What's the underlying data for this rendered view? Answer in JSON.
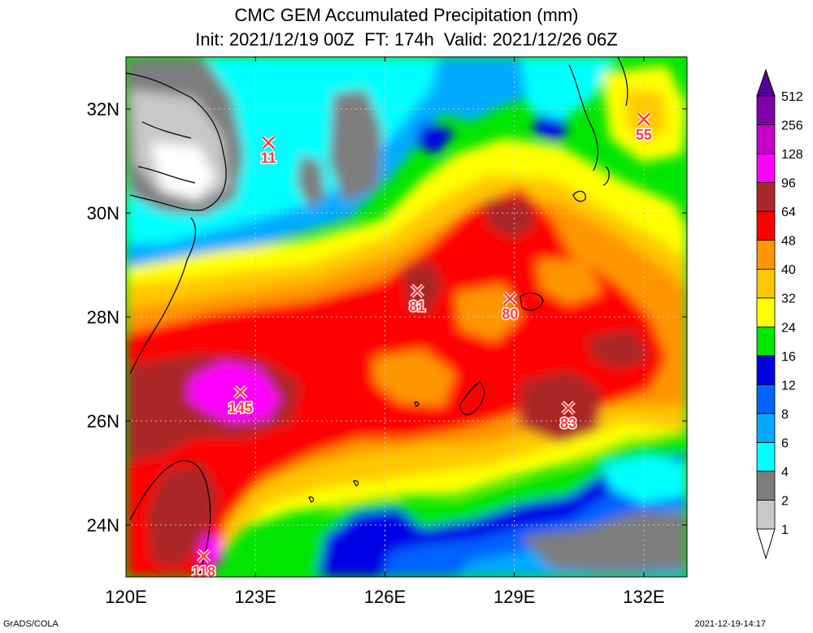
{
  "title": "CMC GEM Accumulated Precipitation (mm)",
  "subtitle": "Init: 2021/12/19 00Z  FT: 174h  Valid: 2021/12/26 06Z",
  "credit_left": "GrADS/COLA",
  "credit_right": "2021-12-19-14:17",
  "map": {
    "lon_range": [
      120,
      133
    ],
    "lat_range": [
      23,
      33
    ],
    "lon_ticks": [
      {
        "value": 120,
        "label": "120E"
      },
      {
        "value": 123,
        "label": "123E"
      },
      {
        "value": 126,
        "label": "126E"
      },
      {
        "value": 129,
        "label": "129E"
      },
      {
        "value": 132,
        "label": "132E"
      }
    ],
    "lat_ticks": [
      {
        "value": 24,
        "label": "24N"
      },
      {
        "value": 26,
        "label": "26N"
      },
      {
        "value": 28,
        "label": "28N"
      },
      {
        "value": 30,
        "label": "30N"
      },
      {
        "value": 32,
        "label": "32N"
      }
    ],
    "grid": true
  },
  "markers": [
    {
      "label": "11",
      "lon": 123.3,
      "lat": 31.35
    },
    {
      "label": "55",
      "lon": 132.0,
      "lat": 31.8
    },
    {
      "label": "81",
      "lon": 126.75,
      "lat": 28.5
    },
    {
      "label": "80",
      "lon": 128.9,
      "lat": 28.35
    },
    {
      "label": "145",
      "lon": 122.65,
      "lat": 26.55
    },
    {
      "label": "83",
      "lon": 130.25,
      "lat": 26.25
    },
    {
      "label": "118",
      "lon": 121.8,
      "lat": 23.4
    }
  ],
  "colorbar": [
    {
      "label": "1",
      "color": "#ffffff"
    },
    {
      "label": "2",
      "color": "#c8c8c8"
    },
    {
      "label": "4",
      "color": "#7d7d7d"
    },
    {
      "label": "6",
      "color": "#00ffff"
    },
    {
      "label": "8",
      "color": "#00aaff"
    },
    {
      "label": "12",
      "color": "#0064ff"
    },
    {
      "label": "16",
      "color": "#0000e6"
    },
    {
      "label": "24",
      "color": "#00e600"
    },
    {
      "label": "32",
      "color": "#ffff00"
    },
    {
      "label": "40",
      "color": "#ffc800"
    },
    {
      "label": "48",
      "color": "#ff9600"
    },
    {
      "label": "64",
      "color": "#ff0000"
    },
    {
      "label": "96",
      "color": "#aa2828"
    },
    {
      "label": "128",
      "color": "#ff00ff"
    },
    {
      "label": "256",
      "color": "#c800c8"
    },
    {
      "label": "512",
      "color": "#8000aa"
    }
  ],
  "colorbar_top_color": "#550096",
  "marker_color": "#ff3c3c"
}
